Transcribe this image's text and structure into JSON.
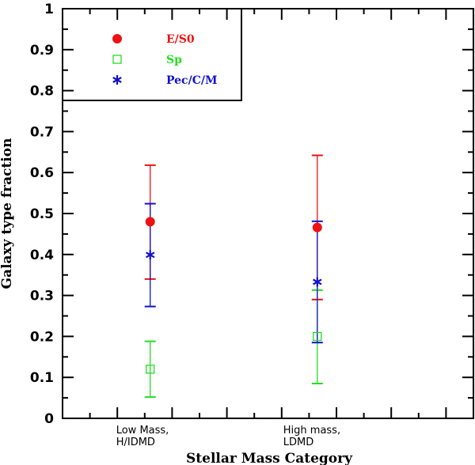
{
  "chart_data": {
    "type": "scatter",
    "title": "",
    "xlabel": "Stellar Mass Category",
    "ylabel": "Galaxy type fraction",
    "ylim": [
      0,
      1
    ],
    "xlim": [
      0,
      15
    ],
    "yticks": [
      "0",
      "0.1",
      "0.2",
      "0.3",
      "0.4",
      "0.5",
      "0.6",
      "0.7",
      "0.8",
      "0.9",
      "1"
    ],
    "categories": [
      {
        "line1": "Low Mass,",
        "line2": "H/IDMD",
        "x": 3.2
      },
      {
        "line1": "High mass,",
        "line2": "LDMD",
        "x": 9.3
      }
    ],
    "legend_position": "top-left",
    "series": [
      {
        "name": "E/S0",
        "marker": "filled-circle",
        "color": "#ee1111",
        "values": [
          0.48,
          0.466
        ],
        "err_low": [
          0.34,
          0.29
        ],
        "err_high": [
          0.618,
          0.642
        ]
      },
      {
        "name": "Sp",
        "marker": "open-square",
        "color": "#22dd22",
        "values": [
          0.12,
          0.2
        ],
        "err_low": [
          0.052,
          0.085
        ],
        "err_high": [
          0.188,
          0.313
        ]
      },
      {
        "name": "Pec/C/M",
        "marker": "asterisk",
        "color": "#1111cc",
        "values": [
          0.399,
          0.333
        ],
        "err_low": [
          0.273,
          0.185
        ],
        "err_high": [
          0.524,
          0.481
        ]
      }
    ]
  }
}
